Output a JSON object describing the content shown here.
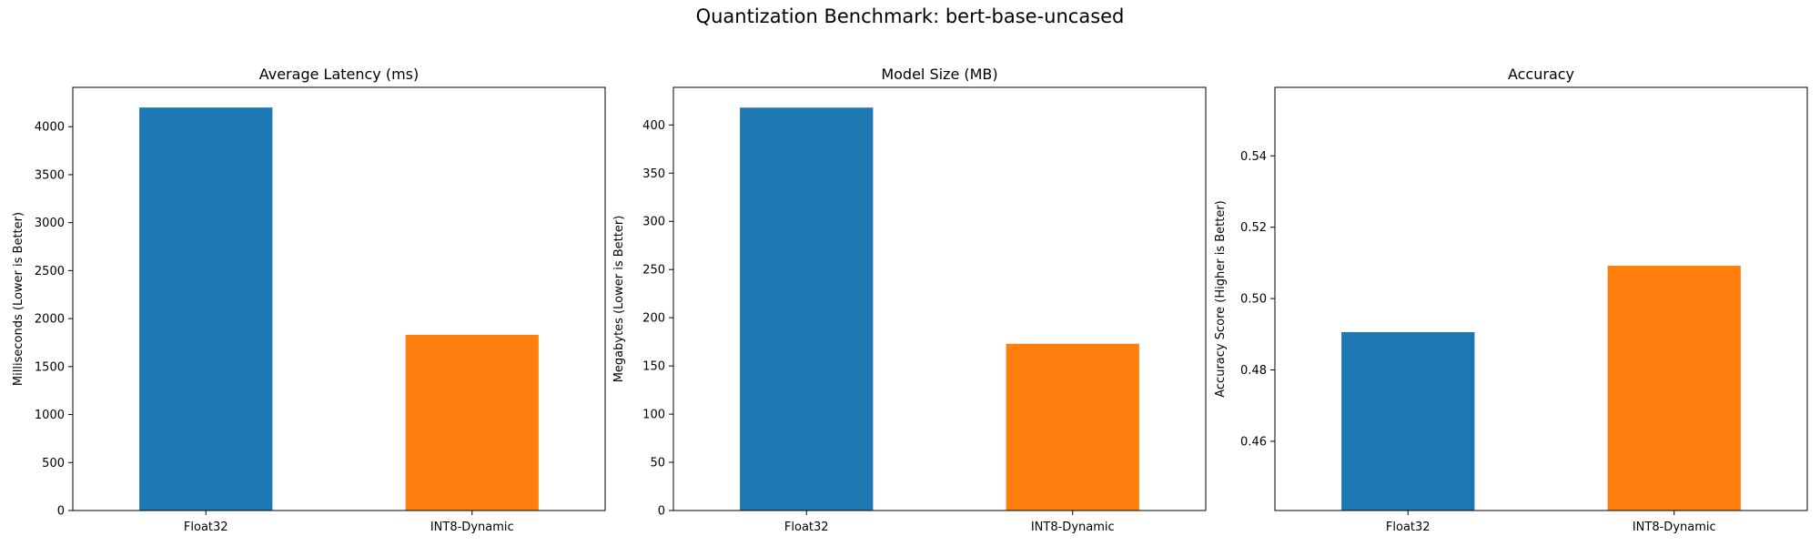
{
  "title": "Quantization Benchmark: bert-base-uncased",
  "chart_data": [
    {
      "type": "bar",
      "title": "Average Latency (ms)",
      "xlabel": "",
      "ylabel": "Milliseconds (Lower is Better)",
      "categories": [
        "Float32",
        "INT8-Dynamic"
      ],
      "values": [
        4200,
        1830
      ],
      "colors": [
        "#1f77b4",
        "#ff7f0e"
      ],
      "ylim": [
        0,
        4410
      ],
      "yticks": [
        0,
        500,
        1000,
        1500,
        2000,
        2500,
        3000,
        3500,
        4000
      ],
      "grid": false,
      "legend": "none"
    },
    {
      "type": "bar",
      "title": "Model Size (MB)",
      "xlabel": "",
      "ylabel": "Megabytes (Lower is Better)",
      "categories": [
        "Float32",
        "INT8-Dynamic"
      ],
      "values": [
        418,
        173
      ],
      "colors": [
        "#1f77b4",
        "#ff7f0e"
      ],
      "ylim": [
        0,
        439
      ],
      "yticks": [
        0,
        50,
        100,
        150,
        200,
        250,
        300,
        350,
        400
      ],
      "grid": false,
      "legend": "none"
    },
    {
      "type": "bar",
      "title": "Accuracy",
      "xlabel": "",
      "ylabel": "Accuracy Score (Higher is Better)",
      "categories": [
        "Float32",
        "INT8-Dynamic"
      ],
      "values": [
        0.4906,
        0.5092
      ],
      "colors": [
        "#1f77b4",
        "#ff7f0e"
      ],
      "ylim": [
        0.4406,
        0.5592
      ],
      "yticks": [
        0.46,
        0.48,
        0.5,
        0.52,
        0.54
      ],
      "ytick_labels": [
        "0.46",
        "0.48",
        "0.50",
        "0.52",
        "0.54"
      ],
      "grid": false,
      "legend": "none"
    }
  ]
}
